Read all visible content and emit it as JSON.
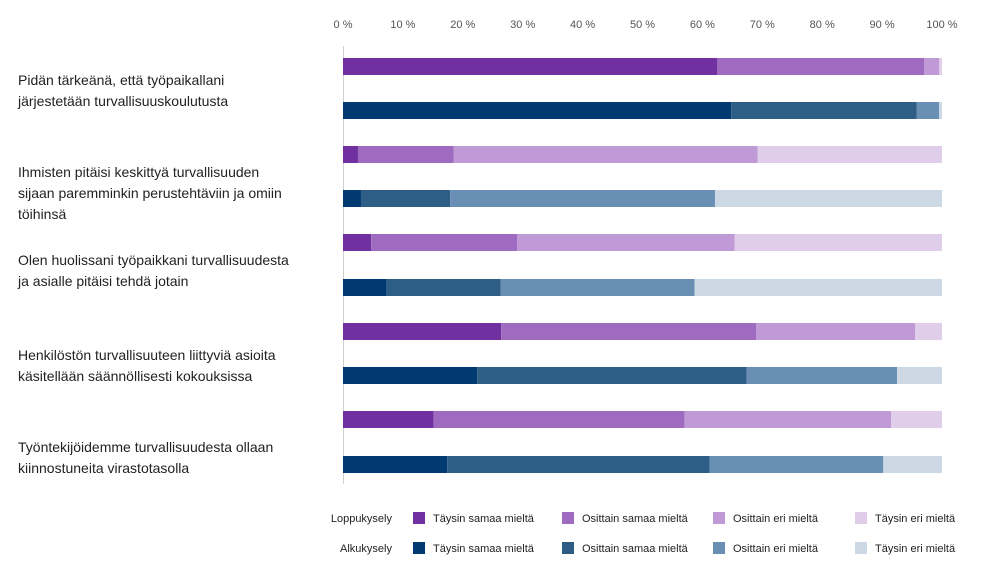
{
  "chart_data": {
    "type": "bar",
    "orientation": "horizontal",
    "stacked": true,
    "percent_axis": true,
    "xlim": [
      0,
      100
    ],
    "x_ticks": [
      "0 %",
      "10 %",
      "20 %",
      "30 %",
      "40 %",
      "50 %",
      "60 %",
      "70 %",
      "80 %",
      "90 %",
      "100 %"
    ],
    "grid": false,
    "legend_position": "bottom",
    "categories": [
      [
        "Pidän tärkeänä, että työpaikallani",
        "järjestetään turvallisuuskoulutusta"
      ],
      [
        "Ihmisten pitäisi keskittyä turvallisuuden",
        "sijaan paremminkin perustehtäviin ja omiin",
        "töihinsä"
      ],
      [
        "Olen huolissani työpaikkani turvallisuudesta",
        "ja asialle pitäisi tehdä jotain"
      ],
      [
        "Henkilöstön turvallisuuteen liittyviä asioita",
        "käsitellään säännöllisesti kokouksissa"
      ],
      [
        "Työntekijöidemme turvallisuudesta ollaan",
        "kiinnostuneita virastotasolla"
      ]
    ],
    "groups": [
      {
        "name": "Loppukysely",
        "segment_names": [
          "Täysin samaa mieltä",
          "Osittain samaa mieltä",
          "Osittain eri mieltä",
          "Täysin eri mieltä"
        ],
        "colors": [
          "#7030a0",
          "#9e6bc0",
          "#c09ad6",
          "#dfcde9"
        ],
        "values": [
          [
            62.5,
            34.5,
            2.5,
            0.5
          ],
          [
            2.5,
            16.0,
            50.7,
            30.8
          ],
          [
            4.7,
            24.4,
            36.3,
            34.6
          ],
          [
            26.4,
            42.6,
            26.5,
            4.5
          ],
          [
            15.1,
            41.9,
            34.5,
            8.5
          ]
        ]
      },
      {
        "name": "Alkukysely",
        "segment_names": [
          "Täysin samaa mieltä",
          "Osittain samaa mieltä",
          "Osittain eri mieltä",
          "Täysin eri mieltä"
        ],
        "colors": [
          "#003a70",
          "#2e5e86",
          "#6a8fb5",
          "#ccd9e5"
        ],
        "values": [
          [
            64.8,
            31.0,
            3.7,
            0.5
          ],
          [
            3.0,
            14.9,
            44.2,
            37.9
          ],
          [
            7.3,
            19.0,
            32.4,
            41.3
          ],
          [
            22.4,
            45.0,
            25.1,
            7.5
          ],
          [
            17.4,
            43.8,
            29.0,
            9.8
          ]
        ]
      }
    ]
  }
}
